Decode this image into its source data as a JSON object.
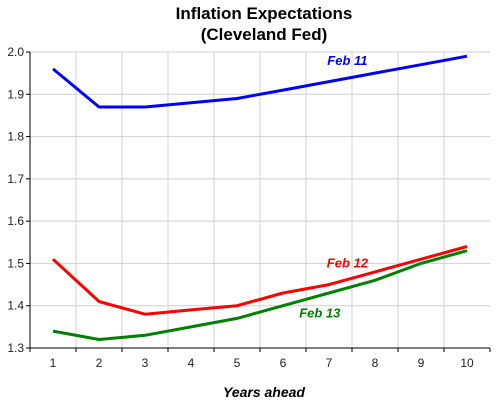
{
  "chart_data": {
    "type": "line",
    "title": "Inflation Expectations",
    "subtitle": "(Cleveland Fed)",
    "xlabel": "Years ahead",
    "ylabel": "",
    "x": [
      1,
      2,
      3,
      4,
      5,
      6,
      7,
      8,
      9,
      10
    ],
    "xlim": [
      0.5,
      10.5
    ],
    "ylim": [
      1.3,
      2.0
    ],
    "yticks": [
      "1.3",
      "1.4",
      "1.5",
      "1.6",
      "1.7",
      "1.8",
      "1.9",
      "2.0"
    ],
    "xticks": [
      "1",
      "2",
      "3",
      "4",
      "5",
      "6",
      "7",
      "8",
      "9",
      "10"
    ],
    "grid": true,
    "series": [
      {
        "name": "Feb 11",
        "color": "#0000ff",
        "values": [
          1.96,
          1.87,
          1.87,
          1.88,
          1.89,
          1.91,
          1.93,
          1.95,
          1.97,
          1.99
        ]
      },
      {
        "name": "Feb 12",
        "color": "#ff0000",
        "values": [
          1.51,
          1.41,
          1.38,
          1.39,
          1.4,
          1.43,
          1.45,
          1.48,
          1.51,
          1.54
        ]
      },
      {
        "name": "Feb 13",
        "color": "#008000",
        "values": [
          1.34,
          1.32,
          1.33,
          1.35,
          1.37,
          1.4,
          1.43,
          1.46,
          1.5,
          1.53
        ]
      }
    ]
  }
}
